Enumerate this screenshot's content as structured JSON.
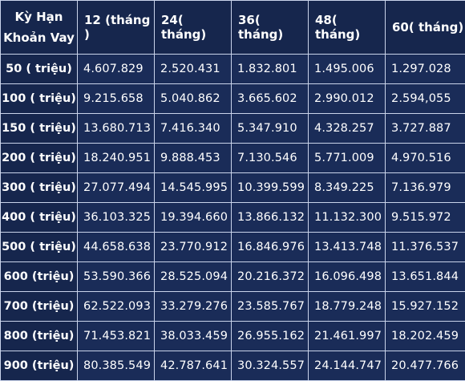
{
  "corner": {
    "line1": "Kỳ Hạn",
    "line2": "Khoản Vay"
  },
  "columns": [
    "12 (tháng )",
    "24( tháng)",
    "36( tháng)",
    "48( tháng)",
    "60( tháng)"
  ],
  "rows": [
    {
      "label": "50 ( triệu)",
      "values": [
        "4.607.829",
        "2.520.431",
        "1.832.801",
        "1.495.006",
        "1.297.028"
      ]
    },
    {
      "label": "100 ( triệu)",
      "values": [
        "9.215.658",
        "5.040.862",
        "3.665.602",
        "2.990.012",
        "2.594,055"
      ]
    },
    {
      "label": "150 ( triệu)",
      "values": [
        "13.680.713",
        "7.416.340",
        "5.347.910",
        "4.328.257",
        "3.727.887"
      ]
    },
    {
      "label": "200 ( triệu)",
      "values": [
        "18.240.951",
        "9.888.453",
        "7.130.546",
        "5.771.009",
        "4.970.516"
      ]
    },
    {
      "label": "300 ( triệu)",
      "values": [
        "27.077.494",
        "14.545.995",
        "10.399.599",
        "8.349.225",
        "7.136.979"
      ]
    },
    {
      "label": "400 ( triệu)",
      "values": [
        "36.103.325",
        "19.394.660",
        "13.866.132",
        "11.132.300",
        "9.515.972"
      ]
    },
    {
      "label": "500 ( triệu)",
      "values": [
        "44.658.638",
        "23.770.912",
        "16.846.976",
        "13.413.748",
        "11.376.537"
      ]
    },
    {
      "label": "600 (triệu)",
      "values": [
        "53.590.366",
        "28.525.094",
        "20.216.372",
        "16.096.498",
        "13.651.844"
      ]
    },
    {
      "label": "700 (triệu)",
      "values": [
        "62.522.093",
        "33.279.276",
        "23.585.767",
        "18.779.248",
        "15.927.152"
      ]
    },
    {
      "label": "800 (triệu)",
      "values": [
        "71.453.821",
        "38.033.459",
        "26.955.162",
        "21.461.997",
        "18.202.459"
      ]
    },
    {
      "label": "900 (triệu)",
      "values": [
        "80.385.549",
        "42.787.641",
        "30.324.557",
        "24.144.747",
        "20.477.766"
      ]
    }
  ]
}
